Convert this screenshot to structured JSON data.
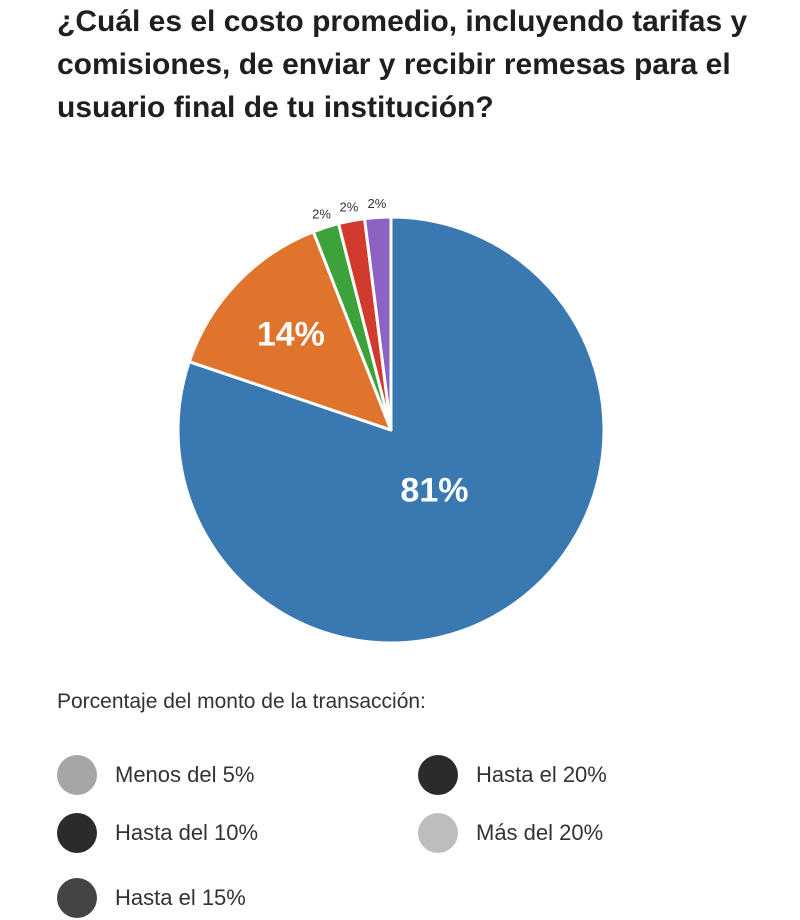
{
  "title": "¿Cuál es el costo promedio, incluyendo tarifas y comisiones, de enviar y recibir remesas para el usuario final de tu institución?",
  "legend_title": "Porcentaje del monto de la transacción:",
  "chart_data": {
    "type": "pie",
    "title": "¿Cuál es el costo promedio, incluyendo tarifas y comisiones, de enviar y recibir remesas para el usuario final de tu institución?",
    "start_angle": "12 o'clock, clockwise",
    "slices": [
      {
        "label": "Menos del 5%",
        "value": 81,
        "display": "81%",
        "color": "#3a78b2"
      },
      {
        "label": "Hasta del 10%",
        "value": 14,
        "display": "14%",
        "color": "#e0742c"
      },
      {
        "label": "Hasta el 15%",
        "value": 2,
        "display": "2%",
        "color": "#3da13c"
      },
      {
        "label": "Hasta el 20%",
        "value": 2,
        "display": "2%",
        "color": "#d23a2e"
      },
      {
        "label": "Más del 20%",
        "value": 2,
        "display": "2%",
        "color": "#8c63c2"
      }
    ]
  },
  "legend": [
    {
      "label": "Menos del 5%",
      "color": "#a6a6a6"
    },
    {
      "label": "Hasta del 10%",
      "color": "#2b2b2b"
    },
    {
      "label": "Hasta el 15%",
      "color": "#444444"
    },
    {
      "label": "Hasta el 20%",
      "color": "#2b2b2b"
    },
    {
      "label": "Más del 20%",
      "color": "#bdbdbd"
    }
  ]
}
